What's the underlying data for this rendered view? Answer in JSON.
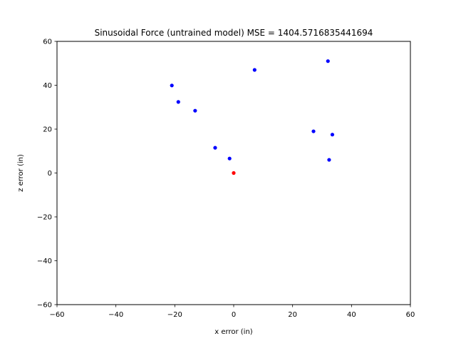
{
  "chart_data": {
    "type": "scatter",
    "title": "Sinusoidal Force (untrained model) MSE = 1404.5716835441694",
    "xlabel": "x error (in)",
    "ylabel": "z error (in)",
    "xlim": [
      -60,
      60
    ],
    "ylim": [
      -60,
      60
    ],
    "xticks": [
      -60,
      -40,
      -20,
      0,
      20,
      40,
      60
    ],
    "yticks": [
      -60,
      -40,
      -20,
      0,
      20,
      40,
      60
    ],
    "xtick_labels": [
      "−60",
      "−40",
      "−20",
      "0",
      "20",
      "40",
      "60"
    ],
    "ytick_labels": [
      "−60",
      "−40",
      "−20",
      "0",
      "20",
      "40",
      "60"
    ],
    "grid": false,
    "series": [
      {
        "color": "#0000ff",
        "points": [
          {
            "x": -21.0,
            "y": 39.9
          },
          {
            "x": -18.8,
            "y": 32.4
          },
          {
            "x": -13.1,
            "y": 28.4
          },
          {
            "x": -6.3,
            "y": 11.5
          },
          {
            "x": -1.4,
            "y": 6.6
          },
          {
            "x": 7.1,
            "y": 47.0
          },
          {
            "x": 27.1,
            "y": 19.0
          },
          {
            "x": 32.0,
            "y": 51.0
          },
          {
            "x": 32.4,
            "y": 6.0
          },
          {
            "x": 33.5,
            "y": 17.5
          }
        ]
      },
      {
        "color": "#ff0000",
        "points": [
          {
            "x": 0.0,
            "y": 0.0
          }
        ]
      }
    ]
  }
}
